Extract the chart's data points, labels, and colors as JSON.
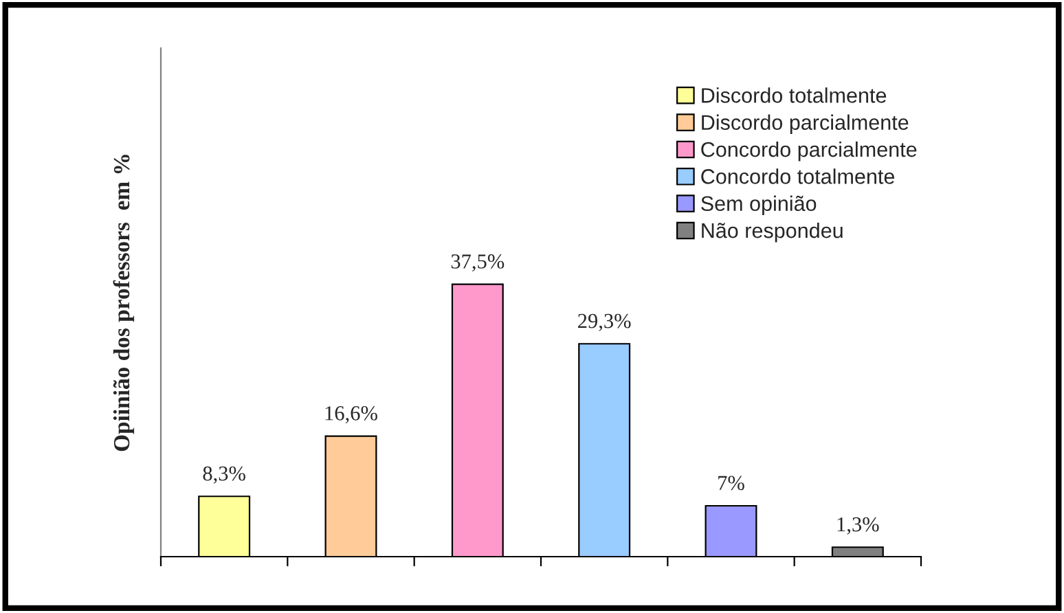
{
  "chart_data": {
    "type": "bar",
    "ylabel": "Opiinião dos professors  em %",
    "categories": [
      null,
      null,
      null,
      null,
      null,
      null
    ],
    "stacked": true,
    "series": [
      {
        "name": "Discordo totalmente",
        "color": "#ffff99",
        "values": [
          8.3,
          null,
          null,
          null,
          null,
          null
        ],
        "value_labels": [
          "8,3%",
          null,
          null,
          null,
          null,
          null
        ]
      },
      {
        "name": "Discordo parcialmente",
        "color": "#ffcc99",
        "values": [
          null,
          16.6,
          null,
          null,
          null,
          null
        ],
        "value_labels": [
          null,
          "16,6%",
          null,
          null,
          null,
          null
        ]
      },
      {
        "name": "Concordo parcialmente",
        "color": "#ff99cc",
        "values": [
          null,
          null,
          37.5,
          null,
          null,
          null
        ],
        "value_labels": [
          null,
          null,
          "37,5%",
          null,
          null,
          null
        ]
      },
      {
        "name": "Concordo totalmente",
        "color": "#99ccff",
        "values": [
          null,
          null,
          null,
          29.3,
          null,
          null
        ],
        "value_labels": [
          null,
          null,
          null,
          "29,3%",
          null,
          null
        ]
      },
      {
        "name": "Sem opinião",
        "color": "#9999ff",
        "values": [
          null,
          null,
          null,
          null,
          7,
          null
        ],
        "value_labels": [
          null,
          null,
          null,
          null,
          "7%",
          null
        ]
      },
      {
        "name": "Não respondeu",
        "color": "#808080",
        "values": [
          null,
          null,
          null,
          null,
          null,
          1.3
        ],
        "value_labels": [
          null,
          null,
          null,
          null,
          null,
          "1,3%"
        ]
      }
    ],
    "ylim": [
      0,
      70
    ],
    "legend": "top right"
  }
}
